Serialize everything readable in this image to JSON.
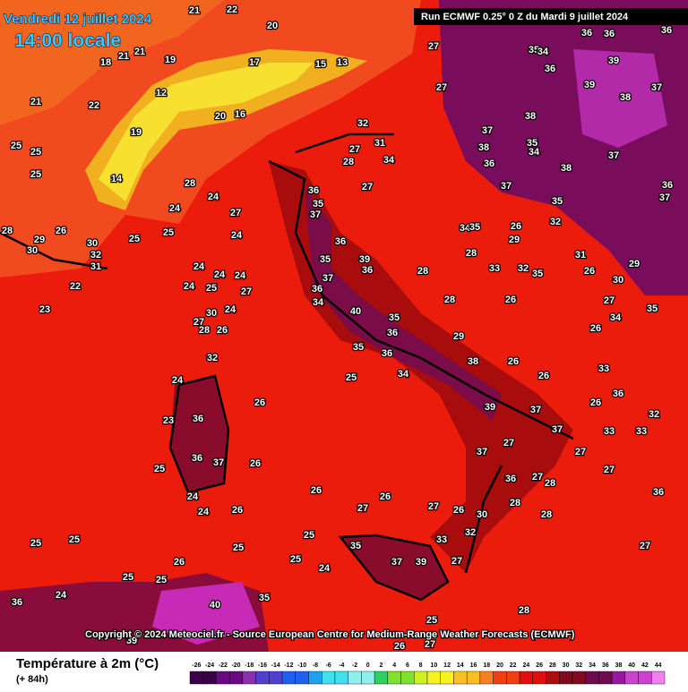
{
  "header": {
    "date": "Vendredi 12 juillet 2024",
    "time": "14:00 locale",
    "run": "Run ECMWF 0.25° 0 Z du Mardi 9 juillet 2024"
  },
  "copyright": "Copyright © 2024 Meteociel.fr - Source European Centre for Medium-Range Weather Forecasts (ECMWF)",
  "legend": {
    "title": "Température à 2m (°C)",
    "lead": "(+ 84h)",
    "ticks": [
      -26,
      -24,
      -22,
      -20,
      -18,
      -16,
      -14,
      -12,
      -10,
      -8,
      -6,
      -4,
      -2,
      0,
      2,
      4,
      6,
      8,
      10,
      12,
      14,
      16,
      18,
      20,
      22,
      24,
      26,
      28,
      30,
      32,
      34,
      36,
      38,
      40,
      42,
      44
    ]
  },
  "map_labels": [
    22,
    21,
    20,
    18,
    21,
    21,
    19,
    17,
    15,
    13,
    20,
    16,
    19,
    22,
    21,
    12,
    14,
    25,
    25,
    25,
    28,
    29,
    30,
    26,
    30,
    32,
    31,
    22,
    23,
    25,
    25,
    24,
    28,
    24,
    27,
    24,
    24,
    24,
    24,
    24,
    25,
    27,
    30,
    28,
    27,
    26,
    32,
    24,
    36,
    23,
    36,
    37,
    25,
    24,
    24,
    26,
    26,
    26,
    26,
    26,
    27,
    27,
    26,
    30,
    28,
    28,
    33,
    32,
    35,
    37,
    39,
    27,
    28,
    25,
    27,
    26,
    25,
    25,
    24,
    25,
    26,
    25,
    25,
    25,
    25,
    24,
    35,
    40,
    39,
    36,
    36,
    36,
    35,
    37,
    35,
    37,
    36,
    34,
    39,
    36,
    40,
    35,
    36,
    36,
    35,
    34,
    28,
    28,
    29,
    38,
    39,
    26,
    26,
    37,
    37,
    27,
    37,
    36,
    27,
    28,
    27,
    37,
    35,
    34,
    38,
    36,
    39,
    39,
    38,
    37,
    36,
    36,
    35,
    34,
    36,
    37,
    38,
    38,
    36,
    37,
    37,
    36,
    35,
    32,
    31,
    26,
    30,
    27,
    34,
    35,
    29,
    36,
    33,
    32,
    36,
    27,
    27,
    27,
    32,
    27,
    34,
    27,
    28,
    31,
    34,
    35,
    26,
    29,
    28,
    33,
    32,
    35,
    26,
    26,
    33,
    26,
    33,
    27,
    24,
    25
  ]
}
